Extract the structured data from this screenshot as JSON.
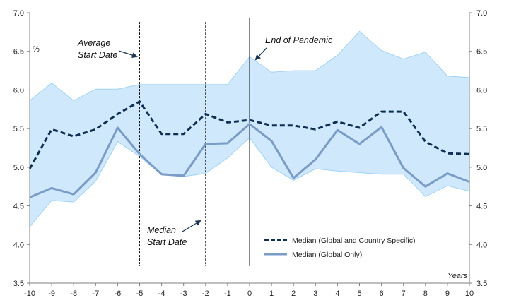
{
  "chart_data": {
    "type": "line",
    "title": "",
    "ylabel": "%",
    "xlabel": "Years",
    "x": [
      -10,
      -9,
      -8,
      -7,
      -6,
      -5,
      -4,
      -3,
      -2,
      -1,
      0,
      1,
      2,
      3,
      4,
      5,
      6,
      7,
      8,
      9,
      10
    ],
    "xlim": [
      -10,
      10
    ],
    "ylim": [
      3.5,
      7.0
    ],
    "y_ticks": [
      "3.5",
      "4.0",
      "4.5",
      "5.0",
      "5.5",
      "6.0",
      "6.5",
      "7.0"
    ],
    "x_ticks": [
      "-10",
      "-9",
      "-8",
      "-7",
      "-6",
      "-5",
      "-4",
      "-3",
      "-2",
      "-1",
      "0",
      "1",
      "2",
      "3",
      "4",
      "5",
      "6",
      "7",
      "8",
      "9",
      "10"
    ],
    "right_axis": true,
    "grid": false,
    "legend_position": "bottom-right",
    "band": {
      "color": "#cfe8fb",
      "edge_color": "#9fd2f5",
      "upper": [
        5.86,
        6.09,
        5.86,
        6.01,
        6.01,
        6.07,
        6.07,
        6.07,
        6.07,
        6.07,
        6.43,
        6.23,
        6.25,
        6.25,
        6.45,
        6.76,
        6.51,
        6.4,
        6.49,
        6.18,
        6.16
      ],
      "lower": [
        4.23,
        4.57,
        4.55,
        4.82,
        5.33,
        5.14,
        4.9,
        4.88,
        4.92,
        5.12,
        5.38,
        5.0,
        4.83,
        4.98,
        4.95,
        4.93,
        4.91,
        4.91,
        4.62,
        4.76,
        4.69
      ]
    },
    "series": [
      {
        "name": "Median (Global and Country Specific)",
        "color": "#0f2f52",
        "style": "dashed",
        "values": [
          4.98,
          5.49,
          5.4,
          5.49,
          5.69,
          5.85,
          5.43,
          5.43,
          5.69,
          5.58,
          5.61,
          5.54,
          5.54,
          5.49,
          5.59,
          5.51,
          5.72,
          5.72,
          5.33,
          5.18,
          5.17
        ]
      },
      {
        "name": "Median (Global Only)",
        "color": "#7a9cc6",
        "style": "solid",
        "values": [
          4.61,
          4.73,
          4.65,
          4.93,
          5.51,
          5.17,
          4.91,
          4.89,
          5.3,
          5.31,
          5.56,
          5.34,
          4.86,
          5.1,
          5.48,
          5.3,
          5.52,
          4.99,
          4.75,
          4.92,
          4.81
        ]
      }
    ],
    "vlines": [
      {
        "x": -5,
        "style": "dashed"
      },
      {
        "x": -2,
        "style": "dashed"
      },
      {
        "x": 0,
        "style": "solid"
      }
    ],
    "annotations": [
      {
        "id": "average-start",
        "lines": [
          "Average",
          "Start Date"
        ]
      },
      {
        "id": "median-start",
        "lines": [
          "Median",
          "Start Date"
        ]
      },
      {
        "id": "end-pandemic",
        "lines": [
          "End of Pandemic"
        ]
      }
    ]
  }
}
